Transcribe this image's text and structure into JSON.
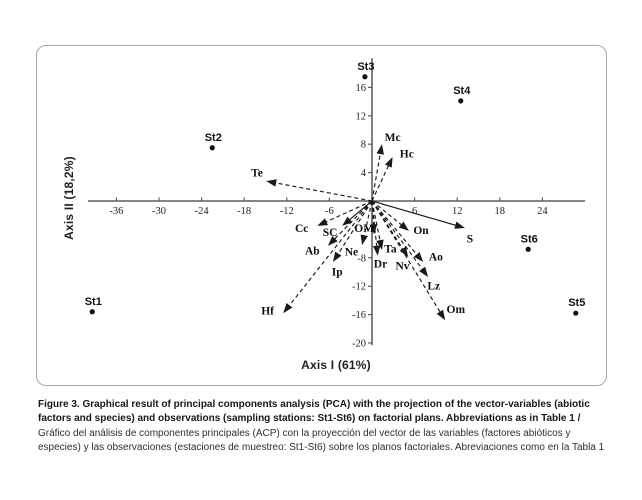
{
  "figure": {
    "caption_bold": "Figure 3. Graphical result of principal components analysis (PCA) with the projection of the vector-variables (abiotic factors and species) and observations (sampling stations: St1-St6) on factorial plans. Abbreviations as in Table 1 / ",
    "caption_regular": "Gráfico del análisis de componentes principales (ACP) con la proyección del vector de las variables (factores abióticos y especies) y las observaciones (estaciones de muestreo: St1-St6) sobre los planos factoriales. Abreviaciones como en la Tabla 1"
  },
  "chart_data": {
    "type": "scatter",
    "subtype": "pca-biplot",
    "title": "",
    "xlabel": "Axis I (61%)",
    "ylabel": "Axis II (18,2%)",
    "xlim": [
      -40,
      30
    ],
    "ylim": [
      -20.3,
      20.1
    ],
    "x_ticks": [
      -36,
      -30,
      -24,
      -18,
      -12,
      -6,
      6,
      12,
      18,
      24
    ],
    "y_ticks": [
      16,
      12,
      8,
      4,
      -8,
      -12,
      -16,
      -20
    ],
    "grid": false,
    "point_color": "#111111",
    "line_color": "#1a1a1a",
    "axis_color": "#5f5f5f",
    "stations": [
      {
        "name": "St1",
        "x": -39.4,
        "y": -15.6
      },
      {
        "name": "St2",
        "x": -22.5,
        "y": 7.5
      },
      {
        "name": "St3",
        "x": -1.0,
        "y": 17.5
      },
      {
        "name": "St4",
        "x": 12.5,
        "y": 14.1
      },
      {
        "name": "St5",
        "x": 28.7,
        "y": -15.8
      },
      {
        "name": "St6",
        "x": 22.0,
        "y": -6.8
      }
    ],
    "vectors": [
      {
        "name": "Te",
        "x": -14.9,
        "y": 2.8,
        "style": "dashed",
        "lx": -16.2,
        "ly": 4.0
      },
      {
        "name": "Mc",
        "x": 1.4,
        "y": 8.0,
        "style": "dashed",
        "lx": 2.9,
        "ly": 9.0
      },
      {
        "name": "Hc",
        "x": 2.9,
        "y": 6.2,
        "style": "dashed",
        "lx": 4.9,
        "ly": 6.7
      },
      {
        "name": "Cc",
        "x": -7.7,
        "y": -3.5,
        "style": "dashed",
        "lx": -9.9,
        "ly": -3.8
      },
      {
        "name": "SC",
        "x": -4.2,
        "y": -3.5,
        "style": "solid",
        "lx": -5.9,
        "ly": -4.4
      },
      {
        "name": "OM",
        "x": 0.3,
        "y": -4.7,
        "style": "dashed",
        "lx": -1.1,
        "ly": -3.8
      },
      {
        "name": "Ab",
        "x": -6.2,
        "y": -6.3,
        "style": "dashed",
        "lx": -8.4,
        "ly": -7.0
      },
      {
        "name": "Ne",
        "x": -1.4,
        "y": -6.2,
        "style": "dashed",
        "lx": -2.9,
        "ly": -7.1
      },
      {
        "name": "Ip",
        "x": -5.5,
        "y": -8.6,
        "style": "dashed",
        "lx": -4.9,
        "ly": -9.9
      },
      {
        "name": "Ta",
        "x": 1.4,
        "y": -6.9,
        "style": "dashed",
        "lx": 2.6,
        "ly": -6.7
      },
      {
        "name": "Dr",
        "x": 0.8,
        "y": -7.7,
        "style": "dashed",
        "lx": 1.2,
        "ly": -8.8
      },
      {
        "name": "Nv",
        "x": 5.1,
        "y": -7.9,
        "style": "dashed",
        "lx": 4.3,
        "ly": -9.1
      },
      {
        "name": "On",
        "x": 5.2,
        "y": -4.2,
        "style": "dashed",
        "lx": 6.9,
        "ly": -4.1
      },
      {
        "name": "Ao",
        "x": 7.2,
        "y": -8.6,
        "style": "dashed",
        "lx": 9.0,
        "ly": -7.8
      },
      {
        "name": "Lz",
        "x": 7.9,
        "y": -10.7,
        "style": "dashed",
        "lx": 8.7,
        "ly": -11.9
      },
      {
        "name": "Om",
        "x": 10.3,
        "y": -16.8,
        "style": "dashed",
        "lx": 11.8,
        "ly": -15.2
      },
      {
        "name": "S",
        "x": 13.1,
        "y": -3.8,
        "style": "solid",
        "lx": 13.8,
        "ly": -5.3
      },
      {
        "name": "Hf",
        "x": -12.5,
        "y": -15.8,
        "style": "dashed",
        "lx": -14.7,
        "ly": -15.4
      }
    ]
  }
}
